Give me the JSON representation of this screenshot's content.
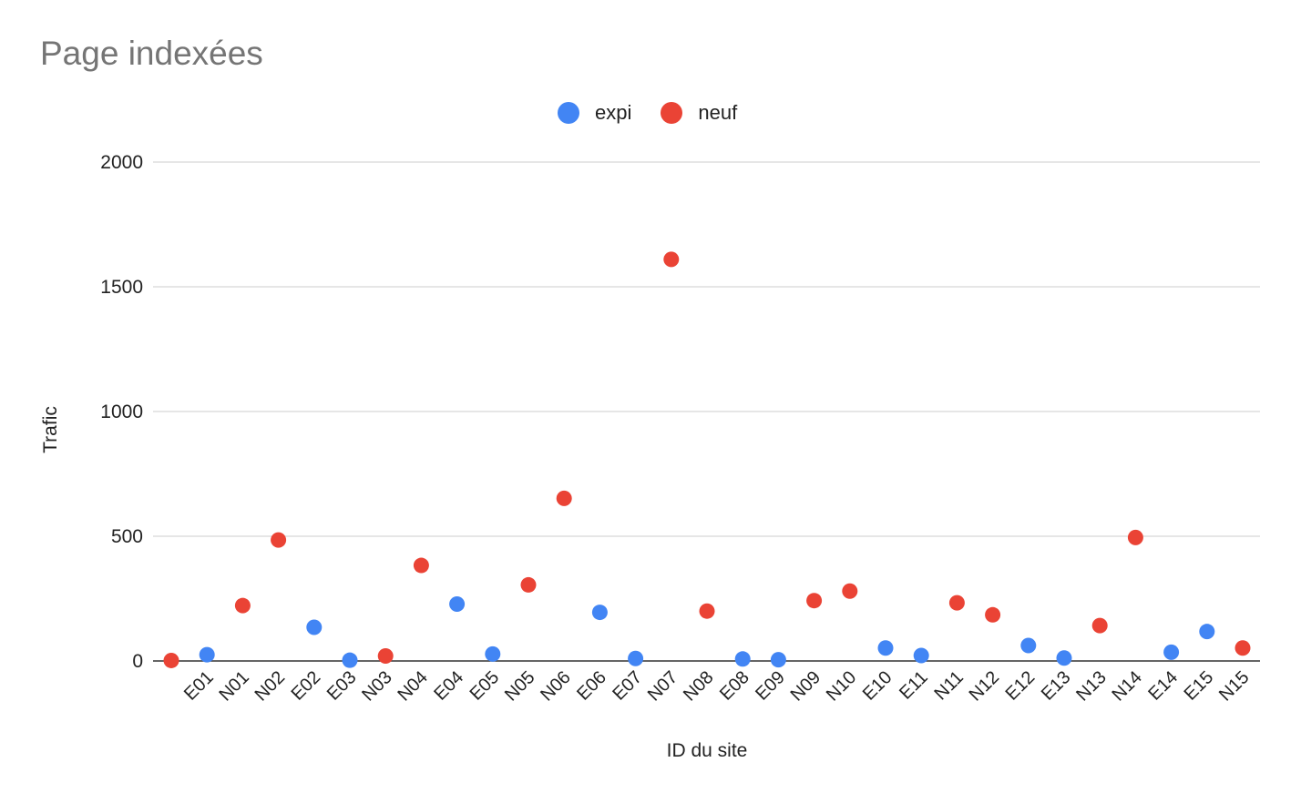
{
  "chart_data": {
    "type": "scatter",
    "title": "Page indexées",
    "xlabel": "ID du site",
    "ylabel": "Trafic",
    "ylim": [
      0,
      2000
    ],
    "yticks": [
      "0",
      "500",
      "1000",
      "1500",
      "2000"
    ],
    "grid": true,
    "legend_position": "top",
    "categories": [
      "E01",
      "N01",
      "N02",
      "E02",
      "E03",
      "N03",
      "N04",
      "E04",
      "E05",
      "N05",
      "N06",
      "E06",
      "E07",
      "N07",
      "N08",
      "E08",
      "E09",
      "N09",
      "N10",
      "E10",
      "E11",
      "N11",
      "N12",
      "E12",
      "E13",
      "N13",
      "N14",
      "E14",
      "E15",
      "N15"
    ],
    "series": [
      {
        "name": "expi",
        "color": "#4285f4",
        "points": [
          {
            "x": "E01",
            "y": 25
          },
          {
            "x": "E02",
            "y": 135
          },
          {
            "x": "E03",
            "y": 3
          },
          {
            "x": "E04",
            "y": 228
          },
          {
            "x": "E05",
            "y": 28
          },
          {
            "x": "E06",
            "y": 195
          },
          {
            "x": "E07",
            "y": 10
          },
          {
            "x": "E08",
            "y": 8
          },
          {
            "x": "E09",
            "y": 5
          },
          {
            "x": "E10",
            "y": 52
          },
          {
            "x": "E11",
            "y": 22
          },
          {
            "x": "E12",
            "y": 62
          },
          {
            "x": "E13",
            "y": 12
          },
          {
            "x": "E14",
            "y": 35
          },
          {
            "x": "E15",
            "y": 118
          }
        ]
      },
      {
        "name": "neuf",
        "color": "#ea4335",
        "points": [
          {
            "x": "",
            "y": 2
          },
          {
            "x": "N01",
            "y": 222
          },
          {
            "x": "N02",
            "y": 485
          },
          {
            "x": "N03",
            "y": 20
          },
          {
            "x": "N04",
            "y": 383
          },
          {
            "x": "N05",
            "y": 305
          },
          {
            "x": "N06",
            "y": 652
          },
          {
            "x": "N07",
            "y": 1610
          },
          {
            "x": "N08",
            "y": 200
          },
          {
            "x": "N09",
            "y": 242
          },
          {
            "x": "N10",
            "y": 280
          },
          {
            "x": "N11",
            "y": 233
          },
          {
            "x": "N12",
            "y": 185
          },
          {
            "x": "N13",
            "y": 142
          },
          {
            "x": "N14",
            "y": 495
          },
          {
            "x": "N15",
            "y": 52
          }
        ]
      }
    ]
  }
}
